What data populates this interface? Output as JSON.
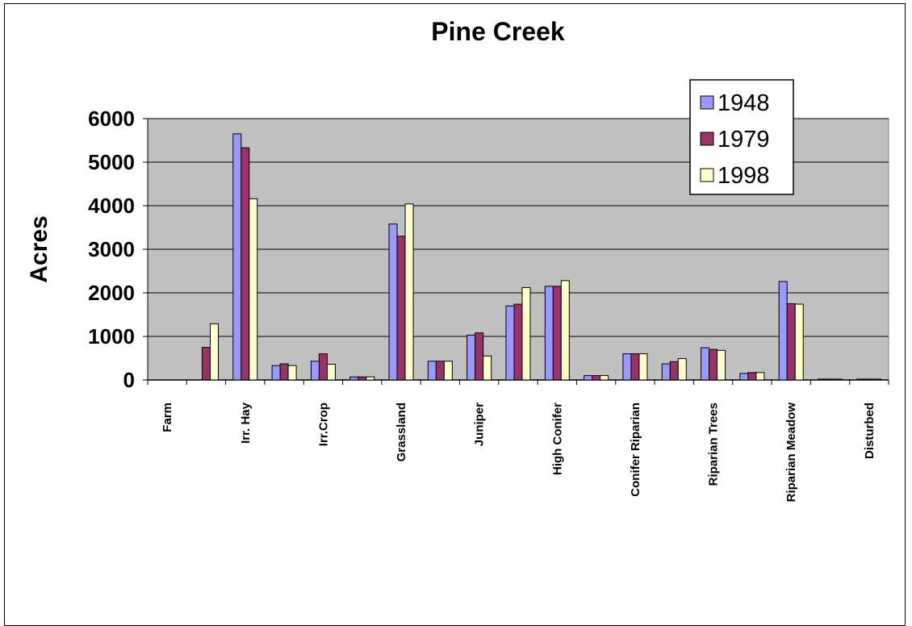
{
  "chart_data": {
    "type": "bar",
    "title": "Pine Creek",
    "xlabel": "",
    "ylabel": "Acres",
    "ylim": [
      0,
      6000
    ],
    "yticks": [
      0,
      1000,
      2000,
      3000,
      4000,
      5000,
      6000
    ],
    "grid": true,
    "legend_position": "top-right",
    "categories": [
      "Farm",
      "",
      "Irr. Hay",
      "",
      "Irr.Crop",
      "",
      "Grassland",
      "",
      "Juniper",
      "",
      "High Conifer",
      "",
      "Conifer Riparian",
      "",
      "Riparian Trees",
      "",
      "Riparian Meadow",
      "",
      "Disturbed"
    ],
    "series": [
      {
        "name": "1948",
        "color": "#9999ff",
        "values": [
          0,
          0,
          5650,
          330,
          430,
          70,
          3580,
          430,
          1030,
          1700,
          2150,
          100,
          600,
          370,
          740,
          150,
          2260,
          20,
          20
        ]
      },
      {
        "name": "1979",
        "color": "#993366",
        "values": [
          0,
          750,
          5330,
          370,
          600,
          70,
          3300,
          430,
          1080,
          1740,
          2150,
          100,
          600,
          420,
          700,
          170,
          1750,
          20,
          20
        ]
      },
      {
        "name": "1998",
        "color": "#ffffcc",
        "values": [
          0,
          1290,
          4160,
          330,
          360,
          70,
          4040,
          430,
          550,
          2120,
          2280,
          100,
          600,
          490,
          680,
          170,
          1740,
          20,
          20
        ]
      }
    ],
    "plot_background": "#c0c0c0"
  }
}
